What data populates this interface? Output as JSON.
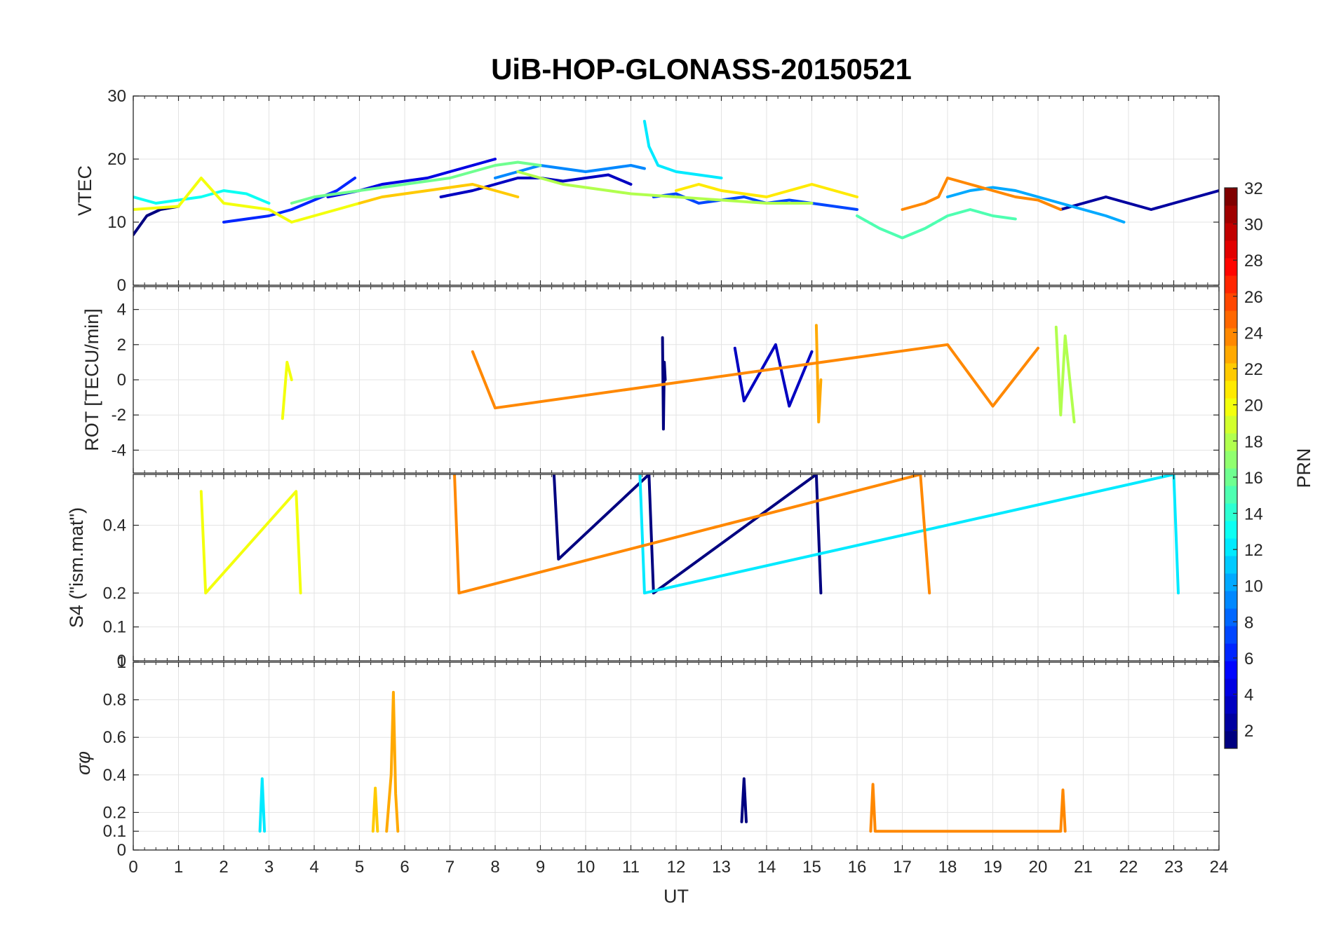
{
  "figure": {
    "title": "UiB-HOP-GLONASS-20150521"
  },
  "chart_data": [
    {
      "type": "line",
      "panel": "vtec",
      "ylabel": "VTEC",
      "xlim": [
        0,
        24
      ],
      "ylim": [
        0,
        30
      ],
      "yticks": [
        "0",
        "10",
        "20",
        "30"
      ],
      "grid": true,
      "series": [
        {
          "prn": 1,
          "x": [
            0,
            0.3,
            0.6,
            1.0
          ],
          "y": [
            8,
            11,
            12,
            12.5
          ]
        },
        {
          "prn": 2,
          "x": [
            20.5,
            21,
            21.5,
            22,
            22.5,
            23,
            23.5,
            24
          ],
          "y": [
            12,
            13,
            14,
            13,
            12,
            13,
            14,
            15
          ]
        },
        {
          "prn": 3,
          "x": [
            6.8,
            7.5,
            8,
            8.5,
            9,
            9.5,
            10,
            10.5,
            11
          ],
          "y": [
            14,
            15,
            16,
            17,
            17,
            16.5,
            17,
            17.5,
            16
          ]
        },
        {
          "prn": 4,
          "x": [
            4.3,
            5.0,
            5.5,
            6.0,
            6.5,
            7.0,
            7.5,
            8.0
          ],
          "y": [
            14,
            15,
            16,
            16.5,
            17,
            18,
            19,
            20
          ]
        },
        {
          "prn": 6,
          "x": [
            2.0,
            2.5,
            3.0,
            3.5,
            4.0,
            4.5,
            4.9
          ],
          "y": [
            10,
            10.5,
            11,
            12,
            13.5,
            15,
            17
          ]
        },
        {
          "prn": 7,
          "x": [
            11.5,
            12,
            12.5,
            13,
            13.5,
            14,
            14.5,
            15,
            15.5,
            16
          ],
          "y": [
            14,
            14.5,
            13,
            13.5,
            14,
            13,
            13.5,
            13,
            12.5,
            12
          ]
        },
        {
          "prn": 9,
          "x": [
            8,
            8.5,
            9,
            9.5,
            10,
            10.5,
            11,
            11.3
          ],
          "y": [
            17,
            18,
            19,
            18.5,
            18,
            18.5,
            19,
            18.5
          ]
        },
        {
          "prn": 10,
          "x": [
            18,
            18.5,
            19,
            19.5,
            20,
            20.5,
            21,
            21.5,
            21.9
          ],
          "y": [
            14,
            15,
            15.5,
            15,
            14,
            13,
            12,
            11,
            10
          ]
        },
        {
          "prn": 12,
          "x": [
            11.3,
            11.4,
            11.6,
            12,
            12.5,
            13
          ],
          "y": [
            26,
            22,
            19,
            18,
            17.5,
            17
          ]
        },
        {
          "prn": 13,
          "x": [
            0,
            0.5,
            1,
            1.5,
            2,
            2.5,
            3
          ],
          "y": [
            14,
            13,
            13.5,
            14,
            15,
            14.5,
            13
          ]
        },
        {
          "prn": 15,
          "x": [
            16,
            16.5,
            17,
            17.5,
            18,
            18.5,
            19,
            19.5
          ],
          "y": [
            11,
            9,
            7.5,
            9,
            11,
            12,
            11,
            10.5
          ]
        },
        {
          "prn": 16,
          "x": [
            3.5,
            4,
            5,
            6,
            7,
            7.5,
            8,
            8.5,
            9
          ],
          "y": [
            13,
            14,
            15,
            16,
            17,
            18,
            19,
            19.5,
            19
          ]
        },
        {
          "prn": 18,
          "x": [
            8.5,
            9,
            9.5,
            10,
            10.5,
            11,
            12,
            13,
            14,
            15
          ],
          "y": [
            18,
            17,
            16,
            15.5,
            15,
            14.5,
            14,
            13.5,
            13,
            13
          ]
        },
        {
          "prn": 20,
          "x": [
            0,
            1,
            1.5,
            2,
            2.5,
            3,
            3.5,
            4,
            4.5,
            5
          ],
          "y": [
            12,
            12.5,
            17,
            13,
            12.5,
            12,
            10,
            11,
            12,
            13
          ]
        },
        {
          "prn": 21,
          "x": [
            12,
            12.5,
            13,
            13.5,
            14,
            14.5,
            15,
            15.5,
            16
          ],
          "y": [
            15,
            16,
            15,
            14.5,
            14,
            15,
            16,
            15,
            14
          ]
        },
        {
          "prn": 22,
          "x": [
            5,
            5.5,
            6,
            6.5,
            7,
            7.5,
            8,
            8.5
          ],
          "y": [
            13,
            14,
            14.5,
            15,
            15.5,
            16,
            15,
            14
          ]
        },
        {
          "prn": 24,
          "x": [
            17,
            17.5,
            17.8,
            18,
            18.5,
            19,
            19.5,
            20,
            20.5
          ],
          "y": [
            12,
            13,
            14,
            17,
            16,
            15,
            14,
            13.5,
            12
          ]
        }
      ]
    },
    {
      "type": "line",
      "panel": "rot",
      "ylabel": "ROT [TECU/min]",
      "xlim": [
        0,
        24
      ],
      "ylim": [
        -5.3,
        5.3
      ],
      "yticks": [
        "-4",
        "-2",
        "0",
        "2",
        "4"
      ],
      "grid": true,
      "series": [
        {
          "prn": 1,
          "x": [
            11.7,
            11.72,
            11.74,
            11.76
          ],
          "y": [
            2.4,
            -2.8,
            1.0,
            0
          ]
        },
        {
          "prn": 3,
          "x": [
            13.3,
            13.5,
            14.2,
            14.5,
            15.0
          ],
          "y": [
            1.8,
            -1.2,
            2.0,
            -1.5,
            1.6
          ]
        },
        {
          "prn": 23,
          "x": [
            15.1,
            15.15,
            15.2
          ],
          "y": [
            3.1,
            -2.4,
            0
          ]
        },
        {
          "prn": 18,
          "x": [
            20.4,
            20.5,
            20.6,
            20.8
          ],
          "y": [
            3.0,
            -2.0,
            2.5,
            -2.4
          ]
        },
        {
          "prn": 20,
          "x": [
            3.3,
            3.4,
            3.5
          ],
          "y": [
            -2.2,
            1.0,
            0
          ]
        },
        {
          "prn": 24,
          "x": [
            7.5,
            8.0,
            18.0,
            19.0,
            20.0
          ],
          "y": [
            1.6,
            -1.6,
            2.0,
            -1.5,
            1.8
          ]
        }
      ]
    },
    {
      "type": "line",
      "panel": "s4",
      "ylabel": "S4 (\"ism.mat\")",
      "xlim": [
        0,
        24
      ],
      "ylim": [
        0,
        0.55
      ],
      "yticks": [
        "0",
        "0.1",
        "0.2",
        "0.4"
      ],
      "grid": true,
      "series": [
        {
          "prn": 1,
          "x": [
            9.3,
            9.4,
            11.4,
            11.5,
            15.1,
            15.2
          ],
          "y": [
            0.55,
            0.3,
            0.55,
            0.2,
            0.55,
            0.2
          ]
        },
        {
          "prn": 12,
          "x": [
            11.2,
            11.3,
            23.0,
            23.1
          ],
          "y": [
            0.55,
            0.2,
            0.55,
            0.2
          ]
        },
        {
          "prn": 24,
          "x": [
            7.1,
            7.2,
            17.4,
            17.6
          ],
          "y": [
            0.55,
            0.2,
            0.55,
            0.2
          ]
        },
        {
          "prn": 20,
          "x": [
            1.5,
            1.6,
            3.6,
            3.7
          ],
          "y": [
            0.5,
            0.2,
            0.5,
            0.2
          ]
        }
      ]
    },
    {
      "type": "line",
      "panel": "sigma-phi",
      "ylabel": "σφ",
      "xlim": [
        0,
        24
      ],
      "ylim": [
        0,
        1
      ],
      "yticks": [
        "0",
        "0.1",
        "0.2",
        "0.4",
        "0.6",
        "0.8",
        "1"
      ],
      "xticks": [
        "0",
        "1",
        "2",
        "3",
        "4",
        "5",
        "6",
        "7",
        "8",
        "9",
        "10",
        "11",
        "12",
        "13",
        "14",
        "15",
        "16",
        "17",
        "18",
        "19",
        "20",
        "21",
        "22",
        "23",
        "24"
      ],
      "xlabel": "UT",
      "grid": true,
      "series": [
        {
          "prn": 23,
          "x": [
            5.6,
            5.7,
            5.75,
            5.8,
            5.85
          ],
          "y": [
            0.1,
            0.4,
            0.84,
            0.3,
            0.1
          ]
        },
        {
          "prn": 22,
          "x": [
            5.3,
            5.35,
            5.4
          ],
          "y": [
            0.1,
            0.33,
            0.1
          ]
        },
        {
          "prn": 12,
          "x": [
            2.8,
            2.85,
            2.9
          ],
          "y": [
            0.1,
            0.38,
            0.1
          ]
        },
        {
          "prn": 1,
          "x": [
            13.45,
            13.5,
            13.55
          ],
          "y": [
            0.15,
            0.38,
            0.15
          ]
        },
        {
          "prn": 24,
          "x": [
            16.3,
            16.35,
            16.4,
            20.5,
            20.55,
            20.6
          ],
          "y": [
            0.1,
            0.35,
            0.1,
            0.1,
            0.32,
            0.1
          ]
        }
      ]
    }
  ],
  "colorbar": {
    "label": "PRN",
    "range": [
      1,
      32
    ],
    "ticks": [
      "2",
      "4",
      "6",
      "8",
      "10",
      "12",
      "14",
      "16",
      "18",
      "20",
      "22",
      "24",
      "26",
      "28",
      "30",
      "32"
    ]
  }
}
